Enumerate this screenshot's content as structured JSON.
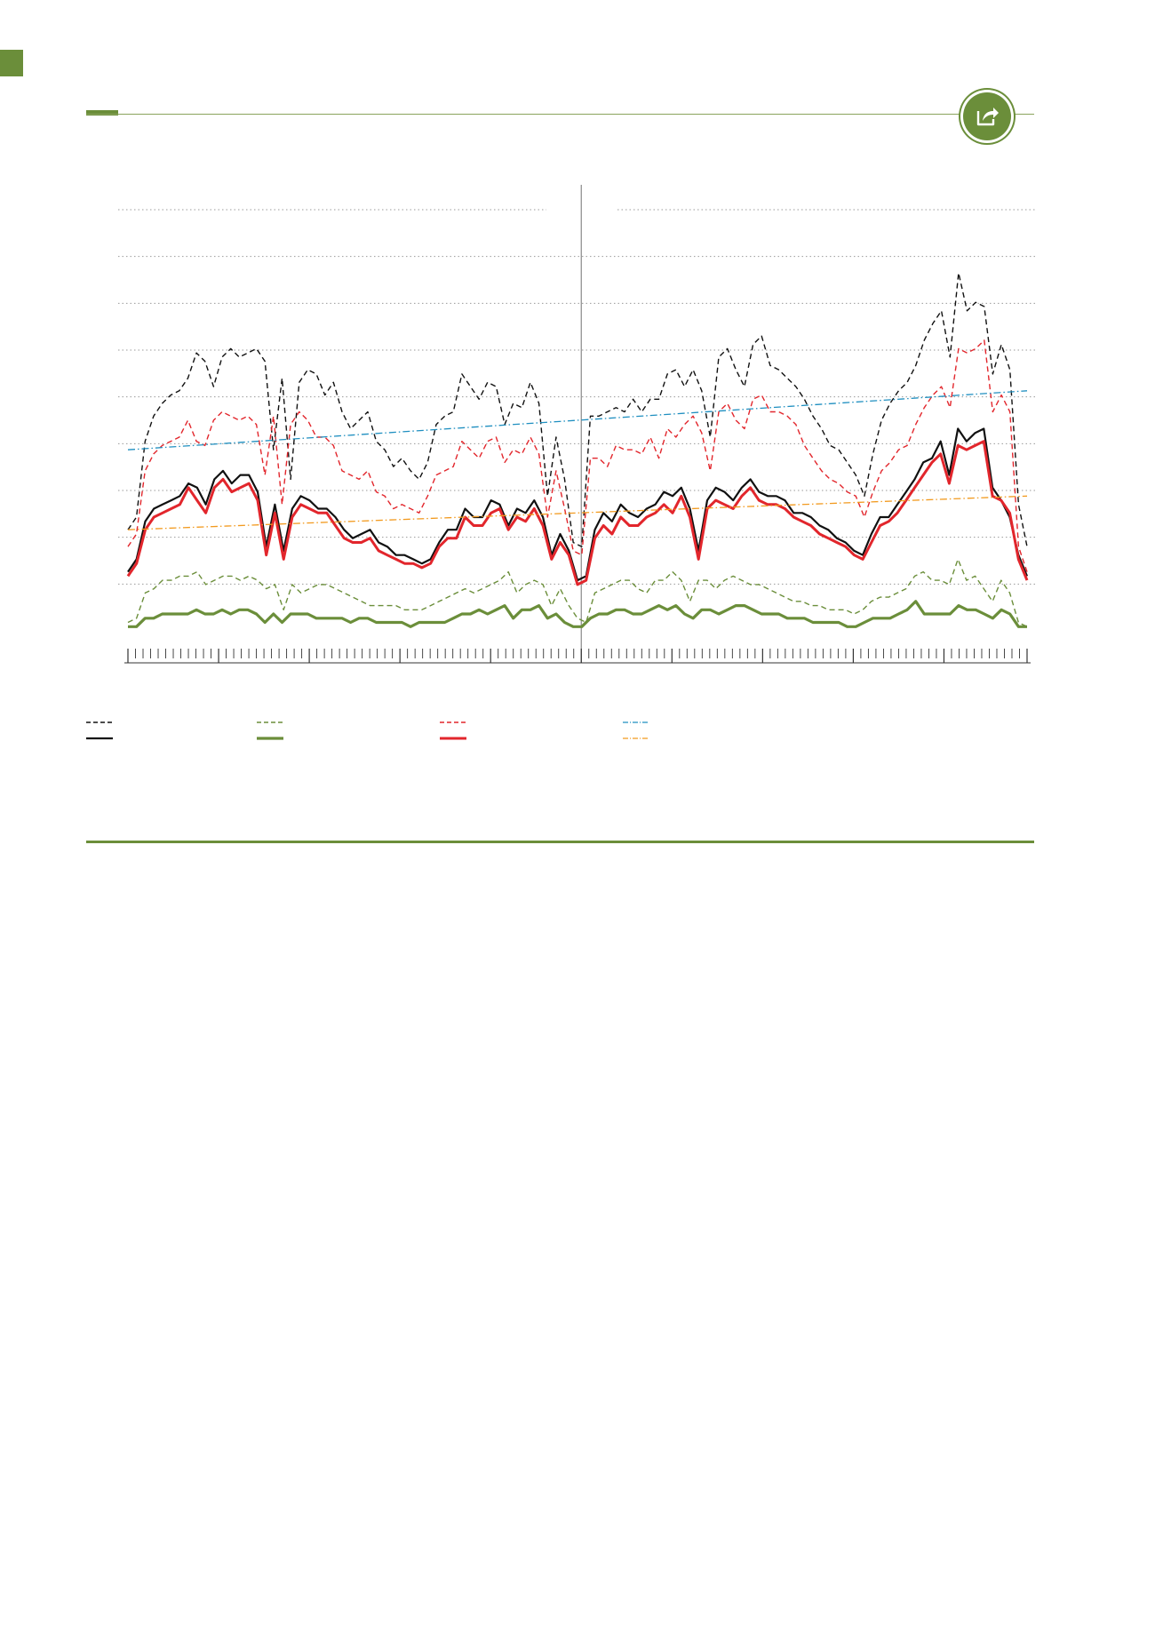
{
  "page": {
    "accent_color": "#6b8e3a",
    "share_icon": "share-arrow-icon"
  },
  "chart_data": {
    "type": "line",
    "title": "",
    "xlabel": "",
    "ylabel": "",
    "grid": true,
    "legend_placement": "bottom",
    "ylim": [
      0,
      100
    ],
    "x_count": 120,
    "divider_at_index": 60,
    "series": [
      {
        "color": "#111111",
        "style": "dashed",
        "width": 1.4,
        "values": [
          24,
          27,
          45,
          51,
          54,
          56,
          57,
          60,
          66,
          64,
          58,
          65,
          67,
          65,
          66,
          67,
          64,
          43,
          60,
          36,
          59,
          62,
          61,
          56,
          59,
          52,
          48,
          50,
          52,
          45,
          43,
          39,
          41,
          38,
          36,
          40,
          49,
          51,
          52,
          61,
          58,
          55,
          59,
          58,
          49,
          54,
          53,
          59,
          54,
          32,
          46,
          36,
          21,
          20,
          51,
          51,
          52,
          53,
          52,
          55,
          52,
          55,
          55,
          61,
          62,
          58,
          62,
          57,
          46,
          65,
          67,
          62,
          58,
          68,
          70,
          63,
          62,
          60,
          58,
          55,
          51,
          48,
          44,
          43,
          40,
          37,
          32,
          42,
          50,
          54,
          57,
          59,
          63,
          69,
          73,
          76,
          65,
          85,
          76,
          78,
          77,
          61,
          68,
          62,
          30,
          20
        ]
      },
      {
        "color": "#e2262c",
        "style": "dashed",
        "width": 1.4,
        "values": [
          20,
          23,
          38,
          42,
          44,
          45,
          46,
          50,
          45,
          44,
          50,
          52,
          51,
          50,
          51,
          49,
          37,
          51,
          30,
          49,
          52,
          50,
          46,
          46,
          44,
          38,
          37,
          36,
          38,
          33,
          32,
          29,
          30,
          29,
          28,
          32,
          37,
          38,
          39,
          45,
          43,
          41,
          45,
          46,
          40,
          43,
          42,
          46,
          42,
          27,
          38,
          29,
          19,
          18,
          41,
          41,
          39,
          44,
          43,
          43,
          42,
          46,
          41,
          48,
          46,
          49,
          51,
          47,
          38,
          52,
          54,
          50,
          48,
          55,
          56,
          52,
          52,
          51,
          49,
          44,
          41,
          38,
          36,
          35,
          33,
          32,
          27,
          33,
          38,
          40,
          43,
          44,
          49,
          53,
          56,
          58,
          53,
          67,
          66,
          67,
          69,
          52,
          56,
          52,
          20,
          14
        ]
      },
      {
        "color": "#111111",
        "style": "solid",
        "width": 2.2,
        "values": [
          14,
          17,
          26,
          29,
          30,
          31,
          32,
          35,
          34,
          30,
          36,
          38,
          35,
          37,
          37,
          33,
          20,
          30,
          19,
          29,
          32,
          31,
          29,
          29,
          27,
          24,
          22,
          23,
          24,
          21,
          20,
          18,
          18,
          17,
          16,
          17,
          21,
          24,
          24,
          29,
          27,
          27,
          31,
          30,
          25,
          29,
          28,
          31,
          27,
          18,
          23,
          19,
          12,
          13,
          24,
          28,
          26,
          30,
          28,
          27,
          29,
          30,
          33,
          32,
          34,
          29,
          19,
          31,
          34,
          33,
          31,
          34,
          36,
          33,
          32,
          32,
          31,
          28,
          28,
          27,
          25,
          24,
          22,
          21,
          19,
          18,
          23,
          27,
          27,
          30,
          33,
          36,
          40,
          41,
          45,
          37,
          48,
          45,
          47,
          48,
          34,
          31,
          27,
          18,
          13
        ]
      },
      {
        "color": "#e2262c",
        "style": "solid",
        "width": 3,
        "values": [
          13,
          16,
          24,
          27,
          28,
          29,
          30,
          34,
          31,
          28,
          34,
          36,
          33,
          34,
          35,
          31,
          18,
          28,
          17,
          27,
          30,
          29,
          28,
          28,
          25,
          22,
          21,
          21,
          22,
          19,
          18,
          17,
          16,
          16,
          15,
          16,
          20,
          22,
          22,
          27,
          25,
          25,
          28,
          29,
          24,
          27,
          26,
          29,
          25,
          17,
          21,
          18,
          11,
          12,
          22,
          25,
          23,
          27,
          25,
          25,
          27,
          28,
          30,
          28,
          32,
          27,
          17,
          29,
          31,
          30,
          29,
          32,
          34,
          31,
          30,
          30,
          29,
          27,
          26,
          25,
          23,
          22,
          21,
          20,
          18,
          17,
          21,
          25,
          26,
          28,
          31,
          34,
          37,
          40,
          42,
          35,
          44,
          43,
          44,
          45,
          32,
          31,
          28,
          17,
          12
        ]
      },
      {
        "color": "#6b8e3a",
        "style": "dashed",
        "width": 1.4,
        "values": [
          2,
          3,
          9,
          10,
          12,
          12,
          13,
          13,
          14,
          11,
          12,
          13,
          13,
          12,
          13,
          12,
          10,
          11,
          5,
          11,
          9,
          10,
          11,
          11,
          10,
          9,
          8,
          7,
          6,
          6,
          6,
          6,
          5,
          5,
          5,
          6,
          7,
          8,
          9,
          10,
          9,
          10,
          11,
          12,
          14,
          9,
          11,
          12,
          11,
          6,
          10,
          6,
          3,
          2,
          9,
          10,
          11,
          12,
          12,
          10,
          9,
          12,
          12,
          14,
          12,
          7,
          12,
          12,
          10,
          12,
          13,
          12,
          11,
          11,
          10,
          9,
          8,
          7,
          7,
          6,
          6,
          5,
          5,
          5,
          4,
          5,
          7,
          8,
          8,
          9,
          10,
          13,
          14,
          12,
          12,
          11,
          17,
          12,
          13,
          10,
          7,
          12,
          9,
          2,
          1
        ]
      },
      {
        "color": "#6b8e3a",
        "style": "solid",
        "width": 3.2,
        "values": [
          1,
          1,
          3,
          3,
          4,
          4,
          4,
          4,
          5,
          4,
          4,
          5,
          4,
          5,
          5,
          4,
          2,
          4,
          2,
          4,
          4,
          4,
          3,
          3,
          3,
          3,
          2,
          3,
          3,
          2,
          2,
          2,
          2,
          1,
          2,
          2,
          2,
          2,
          3,
          4,
          4,
          5,
          4,
          5,
          6,
          3,
          5,
          5,
          6,
          3,
          4,
          2,
          1,
          1,
          3,
          4,
          4,
          5,
          5,
          4,
          4,
          5,
          6,
          5,
          6,
          4,
          3,
          5,
          5,
          4,
          5,
          6,
          6,
          5,
          4,
          4,
          4,
          3,
          3,
          3,
          2,
          2,
          2,
          2,
          1,
          1,
          2,
          3,
          3,
          3,
          4,
          5,
          7,
          4,
          4,
          4,
          4,
          6,
          5,
          5,
          4,
          3,
          5,
          4,
          1,
          1
        ]
      },
      {
        "color": "#1f8fc0",
        "style": "dashdot",
        "width": 1.3,
        "values": [
          43,
          57
        ]
      },
      {
        "color": "#f29a1f",
        "style": "dashdot",
        "width": 1.3,
        "values": [
          24,
          32
        ]
      }
    ]
  }
}
